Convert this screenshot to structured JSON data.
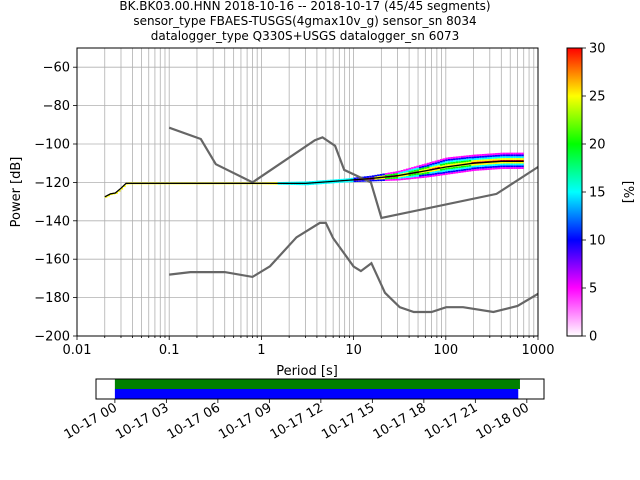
{
  "figure": {
    "title_lines": [
      "BK.BK03.00.HNN   2018-10-16 -- 2018-10-17  (45/45 segments)",
      "sensor_type FBAES-TUSGS(4gmax10v_g) sensor_sn 8034",
      "datalogger_type Q330S+USGS datalogger_sn 6073"
    ]
  },
  "chart_data": [
    {
      "type": "heatmap",
      "name": "ppsd",
      "xlabel": "Period [s]",
      "ylabel": "Power [dB]",
      "xscale": "log",
      "xlim": [
        0.01,
        1000
      ],
      "ylim": [
        -200,
        -50
      ],
      "x_tick_labels": [
        {
          "v": 0.01,
          "label": "0.01"
        },
        {
          "v": 0.1,
          "label": "0.1"
        },
        {
          "v": 1,
          "label": "1"
        },
        {
          "v": 10,
          "label": "10"
        },
        {
          "v": 100,
          "label": "100"
        },
        {
          "v": 1000,
          "label": "1000"
        }
      ],
      "y_ticks": [
        -60,
        -80,
        -100,
        -120,
        -140,
        -160,
        -180,
        -200
      ],
      "y_tick_labels": [
        "−60",
        "−80",
        "−100",
        "−120",
        "−140",
        "−160",
        "−180",
        "−200"
      ],
      "grid": true,
      "colorbar": {
        "label": "[%]",
        "range": [
          0,
          30
        ],
        "ticks": [
          0,
          5,
          10,
          15,
          20,
          25,
          30
        ],
        "tick_labels": [
          "0",
          "5",
          "10",
          "15",
          "20",
          "25",
          "30"
        ],
        "colors": [
          "#ffffff",
          "#ff00ff",
          "#0000ff",
          "#00ffff",
          "#00ff00",
          "#ffff00",
          "#ff0000"
        ]
      },
      "noise_models": {
        "color": "#666666",
        "high": {
          "x": [
            0.1,
            0.22,
            0.32,
            0.8,
            3.8,
            4.6,
            6.3,
            7.9,
            15.4,
            20,
            354.8,
            1000
          ],
          "y": [
            -91.5,
            -97.4,
            -110.5,
            -120,
            -98,
            -96.5,
            -101,
            -113.5,
            -120,
            -138.5,
            -126,
            -112
          ]
        },
        "low": {
          "x": [
            0.1,
            0.17,
            0.4,
            0.8,
            1.24,
            2.4,
            4.3,
            5,
            6,
            10,
            12,
            15.6,
            21.9,
            31.6,
            45,
            70,
            101,
            154,
            328,
            600,
            1000
          ],
          "y": [
            -168,
            -166.7,
            -166.7,
            -169.2,
            -163.7,
            -148.6,
            -141.1,
            -141.1,
            -149,
            -163.8,
            -166.2,
            -162.1,
            -177.5,
            -185,
            -187.5,
            -187.5,
            -185,
            -185,
            -187.5,
            -184.4,
            -178
          ]
        }
      },
      "mean_curve": {
        "color": "#000000",
        "x": [
          0.02,
          0.023,
          0.026,
          0.03,
          0.034,
          0.1,
          1,
          3,
          8,
          15,
          30,
          60,
          100,
          200,
          400,
          700
        ],
        "y": [
          -127.5,
          -126,
          -125.5,
          -123,
          -120.5,
          -120.5,
          -120.5,
          -120.5,
          -119,
          -118,
          -116.5,
          -114,
          -112,
          -110,
          -109,
          -109
        ]
      },
      "ppsd_band": {
        "x": [
          0.02,
          0.023,
          0.026,
          0.03,
          0.034,
          0.1,
          1,
          3,
          8,
          15,
          30,
          60,
          100,
          200,
          400,
          700
        ],
        "y_low": [
          -128,
          -126.5,
          -126,
          -123.5,
          -121,
          -121,
          -121,
          -121.5,
          -120,
          -119.5,
          -119,
          -117.5,
          -116,
          -114,
          -113,
          -113
        ],
        "y_high": [
          -127,
          -125.5,
          -125,
          -122.5,
          -120,
          -120,
          -120,
          -119.5,
          -118,
          -116.5,
          -114,
          -110,
          -107,
          -105.5,
          -104.5,
          -104.5
        ]
      }
    },
    {
      "type": "timeline",
      "name": "data-coverage",
      "tick_labels": [
        "10-17 00",
        "10-17 03",
        "10-17 06",
        "10-17 09",
        "10-17 12",
        "10-17 15",
        "10-17 18",
        "10-17 21",
        "10-18 00"
      ],
      "tick_hours": [
        0,
        3,
        6,
        9,
        12,
        15,
        18,
        21,
        24
      ],
      "xlim_hours": [
        -1.1,
        25
      ],
      "coverage_hours": [
        0,
        23.6
      ],
      "bars": [
        {
          "color": "#008000",
          "end_hours": 23.6
        },
        {
          "color": "#0000ff",
          "end_hours": 23.5
        }
      ]
    }
  ]
}
